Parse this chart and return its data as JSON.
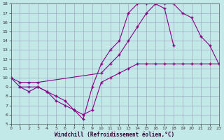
{
  "xlabel": "Windchill (Refroidissement éolien,°C)",
  "bg_color": "#c2e8e8",
  "line_color": "#880088",
  "grid_color": "#9999bb",
  "xlim": [
    0,
    23
  ],
  "ylim": [
    5,
    18
  ],
  "xticks": [
    0,
    1,
    2,
    3,
    4,
    5,
    6,
    7,
    8,
    9,
    10,
    11,
    12,
    13,
    14,
    15,
    16,
    17,
    18,
    19,
    20,
    21,
    22,
    23
  ],
  "yticks": [
    5,
    6,
    7,
    8,
    9,
    10,
    11,
    12,
    13,
    14,
    15,
    16,
    17,
    18
  ],
  "line1_x": [
    0,
    1,
    2,
    3,
    4,
    5,
    6,
    7,
    8,
    9,
    10,
    11,
    12,
    13,
    14,
    15,
    16,
    17,
    18
  ],
  "line1_y": [
    10,
    9,
    8.5,
    9,
    8.5,
    7.5,
    7.0,
    6.5,
    5.5,
    9.0,
    11.5,
    13.0,
    14.0,
    17.0,
    18.0,
    18.0,
    18.0,
    17.5,
    13.5
  ],
  "line2_x": [
    0,
    1,
    2,
    3,
    10,
    11,
    12,
    13,
    14,
    15,
    16,
    17,
    18,
    19,
    20,
    21,
    22,
    23
  ],
  "line2_y": [
    10,
    9.5,
    9.5,
    9.5,
    10.5,
    11.5,
    12.5,
    14.0,
    15.5,
    17.0,
    18.0,
    18.0,
    18.0,
    17.0,
    16.5,
    14.5,
    13.5,
    11.5
  ],
  "line3_x": [
    1,
    2,
    3,
    4,
    5,
    6,
    7,
    8,
    9,
    10,
    11,
    12,
    13,
    14,
    15,
    16,
    17,
    18,
    19,
    20,
    21,
    22,
    23
  ],
  "line3_y": [
    9.0,
    9.0,
    9.0,
    8.5,
    8.0,
    7.5,
    6.5,
    6.0,
    6.5,
    9.5,
    10.0,
    10.5,
    11.0,
    11.5,
    11.5,
    11.5,
    11.5,
    11.5,
    11.5,
    11.5,
    11.5,
    11.5,
    11.5
  ]
}
